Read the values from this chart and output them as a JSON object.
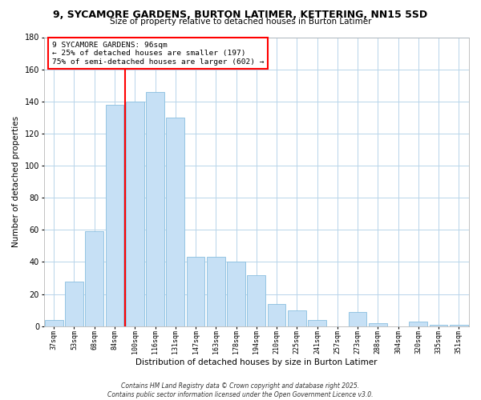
{
  "title": "9, SYCAMORE GARDENS, BURTON LATIMER, KETTERING, NN15 5SD",
  "subtitle": "Size of property relative to detached houses in Burton Latimer",
  "xlabel": "Distribution of detached houses by size in Burton Latimer",
  "ylabel": "Number of detached properties",
  "bar_labels": [
    "37sqm",
    "53sqm",
    "68sqm",
    "84sqm",
    "100sqm",
    "116sqm",
    "131sqm",
    "147sqm",
    "163sqm",
    "178sqm",
    "194sqm",
    "210sqm",
    "225sqm",
    "241sqm",
    "257sqm",
    "273sqm",
    "288sqm",
    "304sqm",
    "320sqm",
    "335sqm",
    "351sqm"
  ],
  "bar_values": [
    4,
    28,
    59,
    138,
    140,
    146,
    130,
    43,
    43,
    40,
    32,
    14,
    10,
    4,
    0,
    9,
    2,
    0,
    3,
    1,
    1
  ],
  "bar_color": "#c6e0f5",
  "bar_edge_color": "#89bfdf",
  "ylim": [
    0,
    180
  ],
  "yticks": [
    0,
    20,
    40,
    60,
    80,
    100,
    120,
    140,
    160,
    180
  ],
  "red_line_index": 4,
  "annotation_line1": "9 SYCAMORE GARDENS: 96sqm",
  "annotation_line2": "← 25% of detached houses are smaller (197)",
  "annotation_line3": "75% of semi-detached houses are larger (602) →",
  "bg_color": "#ffffff",
  "grid_color": "#b8d4ea",
  "footer_line1": "Contains HM Land Registry data © Crown copyright and database right 2025.",
  "footer_line2": "Contains public sector information licensed under the Open Government Licence v3.0."
}
